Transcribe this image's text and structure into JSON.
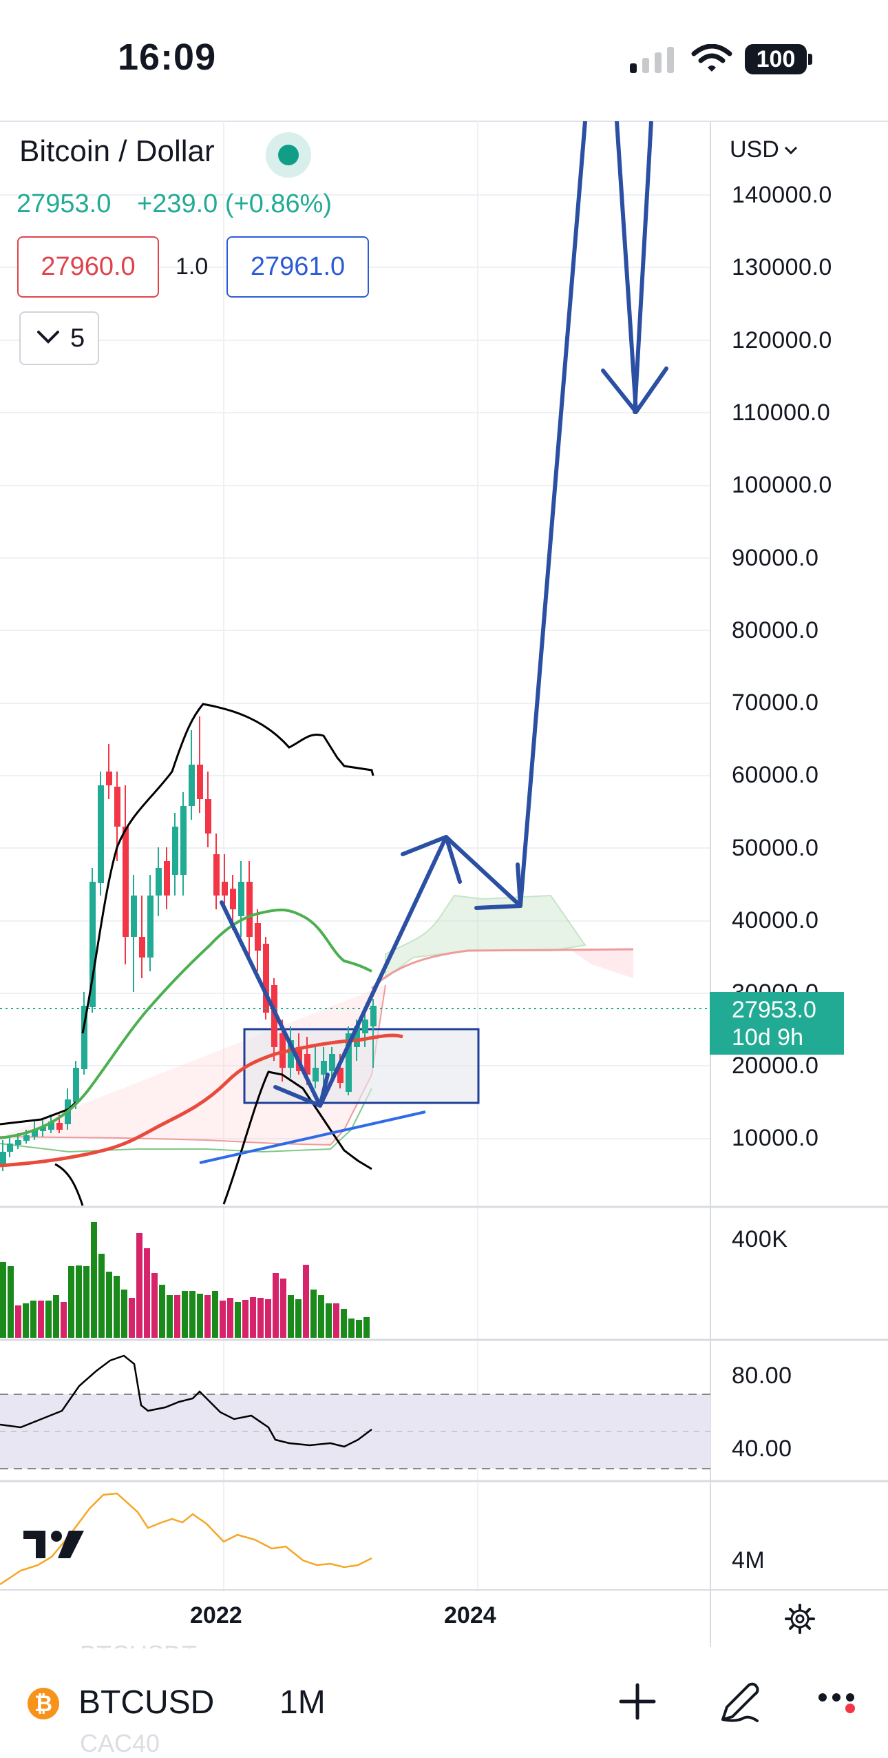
{
  "status_bar": {
    "time": "16:09",
    "battery": "100",
    "icons": [
      "signal-icon",
      "wifi-icon",
      "battery-icon"
    ]
  },
  "header": {
    "title": "Bitcoin / Dollar",
    "price": "27953.0",
    "change": "+239.0 (+0.86%)",
    "bid": "27960.0",
    "spread": "1.0",
    "ask": "27961.0",
    "indicators_count": "5"
  },
  "price_axis": {
    "currency": "USD",
    "labels": [
      "140000.0",
      "130000.0",
      "120000.0",
      "110000.0",
      "100000.0",
      "90000.0",
      "80000.0",
      "70000.0",
      "60000.0",
      "50000.0",
      "40000.0",
      "30000.0",
      "20000.0",
      "10000.0"
    ],
    "current_price": "27953.0",
    "countdown": "10d 9h"
  },
  "volume_pane": {
    "label": "400K"
  },
  "rsi_pane": {
    "upper": "80.00",
    "lower": "40.00"
  },
  "obv_pane": {
    "label": "4M"
  },
  "time_axis": {
    "labels": [
      "2022",
      "2024"
    ]
  },
  "toolbar": {
    "symbol": "BTCUSD",
    "interval": "1M",
    "ghost_above": "BTCUSDT",
    "ghost_below": "CAC40"
  },
  "colors": {
    "up": "#22ab94",
    "down": "#f23645",
    "drawing": "#2a4fa3",
    "bollinger": "#000000",
    "ma_green": "#4caf50",
    "ma_red": "#e84a3c",
    "trend_blue": "#2e6be6",
    "rsi_band": "#e9e6f4",
    "obv": "#f5a623"
  }
}
